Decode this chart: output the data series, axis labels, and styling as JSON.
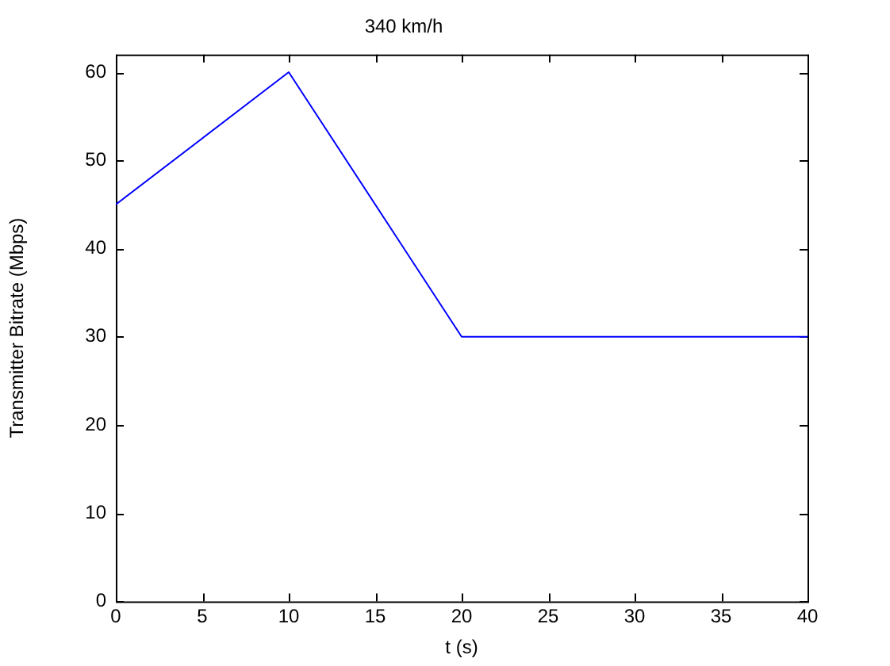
{
  "chart_data": {
    "type": "line",
    "title": "340 km/h",
    "xlabel": "t (s)",
    "ylabel": "Transmitter Bitrate (Mbps)",
    "x": [
      0,
      10,
      20,
      40
    ],
    "series": [
      {
        "color": "#0000ff",
        "values": [
          45,
          60,
          30,
          30
        ]
      }
    ],
    "xlim": [
      0,
      40
    ],
    "xticks": [
      0,
      5,
      10,
      15,
      20,
      25,
      30,
      35,
      40
    ],
    "ylim": [
      0,
      62
    ],
    "yticks": [
      0,
      10,
      20,
      30,
      40,
      50,
      60
    ],
    "grid": false,
    "legend": false,
    "marker": "none",
    "line_style": "solid"
  }
}
